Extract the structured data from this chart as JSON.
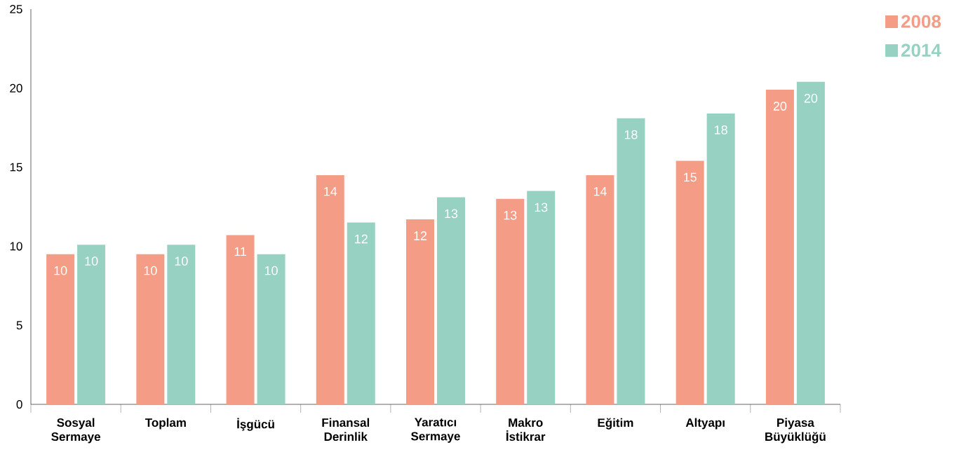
{
  "chart_data": {
    "type": "bar",
    "categories": [
      "Sosyal Sermaye",
      "Toplam",
      "İşgücü",
      "Finansal Derinlik",
      "Yaratıcı Sermaye",
      "Makro İstikrar",
      "Eğitim",
      "Altyapı",
      "Piyasa Büyüklüğü"
    ],
    "series": [
      {
        "name": "2008",
        "color": "#f59c87",
        "values": [
          9.5,
          9.5,
          10.7,
          14.5,
          11.7,
          13.0,
          14.5,
          15.4,
          19.9
        ],
        "value_labels": [
          "10",
          "10",
          "11",
          "14",
          "12",
          "13",
          "14",
          "15",
          "20"
        ]
      },
      {
        "name": "2014",
        "color": "#96d1c2",
        "values": [
          10.1,
          10.1,
          9.5,
          11.5,
          13.1,
          13.5,
          18.1,
          18.4,
          20.4
        ],
        "value_labels": [
          "10",
          "10",
          "10",
          "12",
          "13",
          "13",
          "18",
          "18",
          "20"
        ]
      }
    ],
    "ylim": [
      0,
      25
    ],
    "yticks": [
      0,
      5,
      10,
      15,
      20,
      25
    ],
    "legend": "top right"
  }
}
